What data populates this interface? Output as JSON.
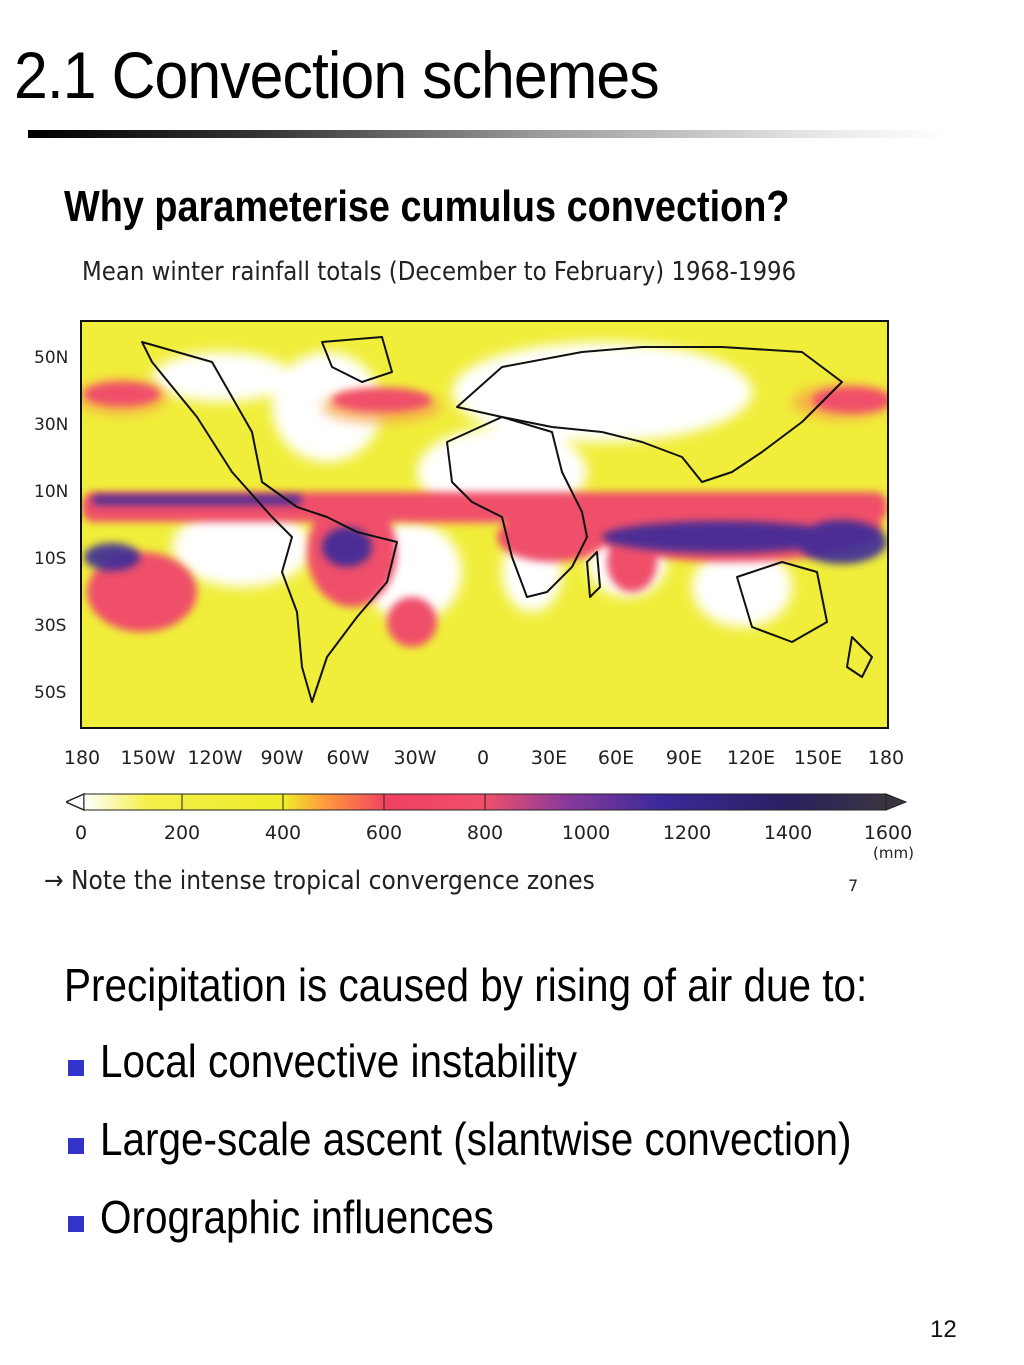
{
  "slide": {
    "title": "2.1 Convection schemes",
    "subtitle": "Why parameterise cumulus convection?",
    "page_number": "12"
  },
  "figure": {
    "title": "Mean winter rainfall totals (December to February) 1968-1996",
    "lat_labels": [
      "50N",
      "30N",
      "10N",
      "10S",
      "30S",
      "50S"
    ],
    "lon_labels": [
      "180",
      "150W",
      "120W",
      "90W",
      "60W",
      "30W",
      "0",
      "30E",
      "60E",
      "90E",
      "120E",
      "150E",
      "180"
    ],
    "colorbar": {
      "labels": [
        "0",
        "200",
        "400",
        "600",
        "800",
        "1000",
        "1200",
        "1400",
        "1600"
      ],
      "unit": "(mm)",
      "colors": [
        "#ffffff",
        "#f4f04a",
        "#eeec2a",
        "#ff9a3c",
        "#f04060",
        "#f0506a",
        "#8a3a9a",
        "#3a2a9a",
        "#2a2060",
        "#3a3440"
      ]
    },
    "note": "→ Note the intense tropical convergence zones",
    "figure_number": "7"
  },
  "body": {
    "intro": "Precipitation is caused by rising of air due to:",
    "bullets": [
      "Local convective instability",
      "Large-scale ascent (slantwise convection)",
      "Orographic influences"
    ]
  },
  "colors": {
    "bullet": "#3333cc",
    "map_background": "#f0ee3a",
    "rain_high": "#f0506a",
    "rain_very_high": "#3a2a9a"
  }
}
